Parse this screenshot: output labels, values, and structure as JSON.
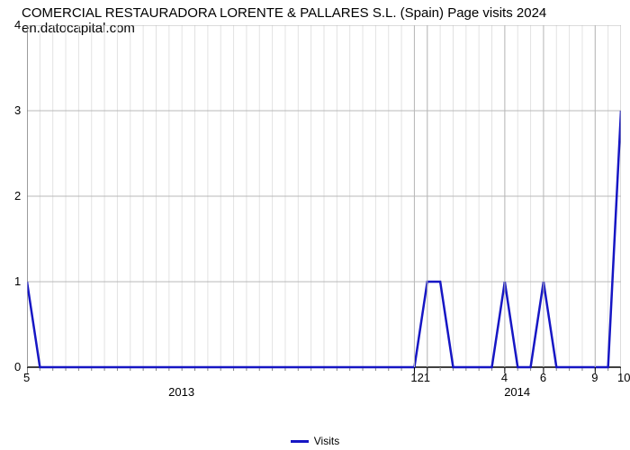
{
  "chart": {
    "type": "line",
    "title": "COMERCIAL RESTAURADORA LORENTE & PALLARES S.L. (Spain) Page visits 2024 en.datocapital.com",
    "title_fontsize": 15,
    "background_color": "#ffffff",
    "grid_color_major": "#b8b8b8",
    "grid_color_minor": "#e2e2e2",
    "axis_color": "#000000",
    "line_color": "#1616c4",
    "line_width": 2.5,
    "ylim": [
      0,
      4
    ],
    "ytick_labels": [
      "0",
      "1",
      "2",
      "3",
      "4"
    ],
    "ytick_positions": [
      0,
      1,
      2,
      3,
      4
    ],
    "x_major_ticks": [
      "5",
      "12",
      "1",
      "4",
      "6",
      "9",
      "10"
    ],
    "x_year_labels": [
      "2013",
      "2014"
    ],
    "legend_label": "Visits",
    "data_y": [
      1,
      0,
      0,
      0,
      0,
      0,
      0,
      0,
      0,
      0,
      0,
      0,
      0,
      0,
      0,
      0,
      0,
      0,
      0,
      0,
      0,
      0,
      0,
      0,
      0,
      0,
      0,
      0,
      0,
      0,
      0,
      1,
      1,
      0,
      0,
      0,
      0,
      1,
      0,
      0,
      1,
      0,
      0,
      0,
      0,
      0,
      3
    ]
  }
}
